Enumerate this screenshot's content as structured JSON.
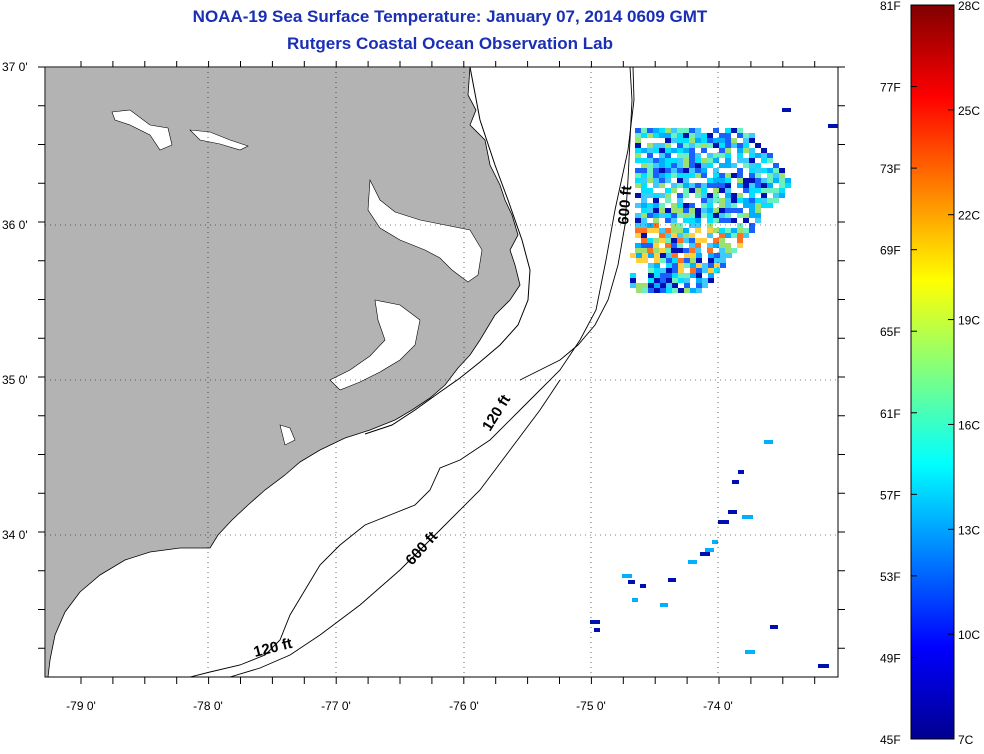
{
  "title": "NOAA-19 Sea Surface Temperature:  January 07, 2014 0609 GMT",
  "subtitle": "Rutgers Coastal Ocean Observation Lab",
  "colors": {
    "land": "#b3b3b3",
    "water": "#ffffff",
    "title": "#1a2fb4"
  },
  "chart_data": {
    "type": "heatmap",
    "title": "NOAA-19 Sea Surface Temperature:  January 07, 2014 0609 GMT",
    "subtitle": "Rutgers Coastal Ocean Observation Lab",
    "x_ticks": [
      "-79 0'",
      "-78 0'",
      "-77 0'",
      "-76 0'",
      "-75 0'",
      "-74 0'"
    ],
    "y_ticks": [
      "37 0'",
      "36 0'",
      "35 0'",
      "34 0'"
    ],
    "contour_labels": [
      "600 ft",
      "120 ft",
      "600 ft",
      "120 ft"
    ],
    "colorbar": {
      "celsius_labels": [
        "28C",
        "25C",
        "22C",
        "19C",
        "16C",
        "13C",
        "10C",
        "7C"
      ],
      "fahrenheit_labels": [
        "81F",
        "77F",
        "73F",
        "69F",
        "65F",
        "61F",
        "57F",
        "53F",
        "49F",
        "45F"
      ],
      "range_c": [
        7,
        28
      ],
      "range_f": [
        45,
        81
      ],
      "colormap": "jet"
    },
    "grid": true
  }
}
